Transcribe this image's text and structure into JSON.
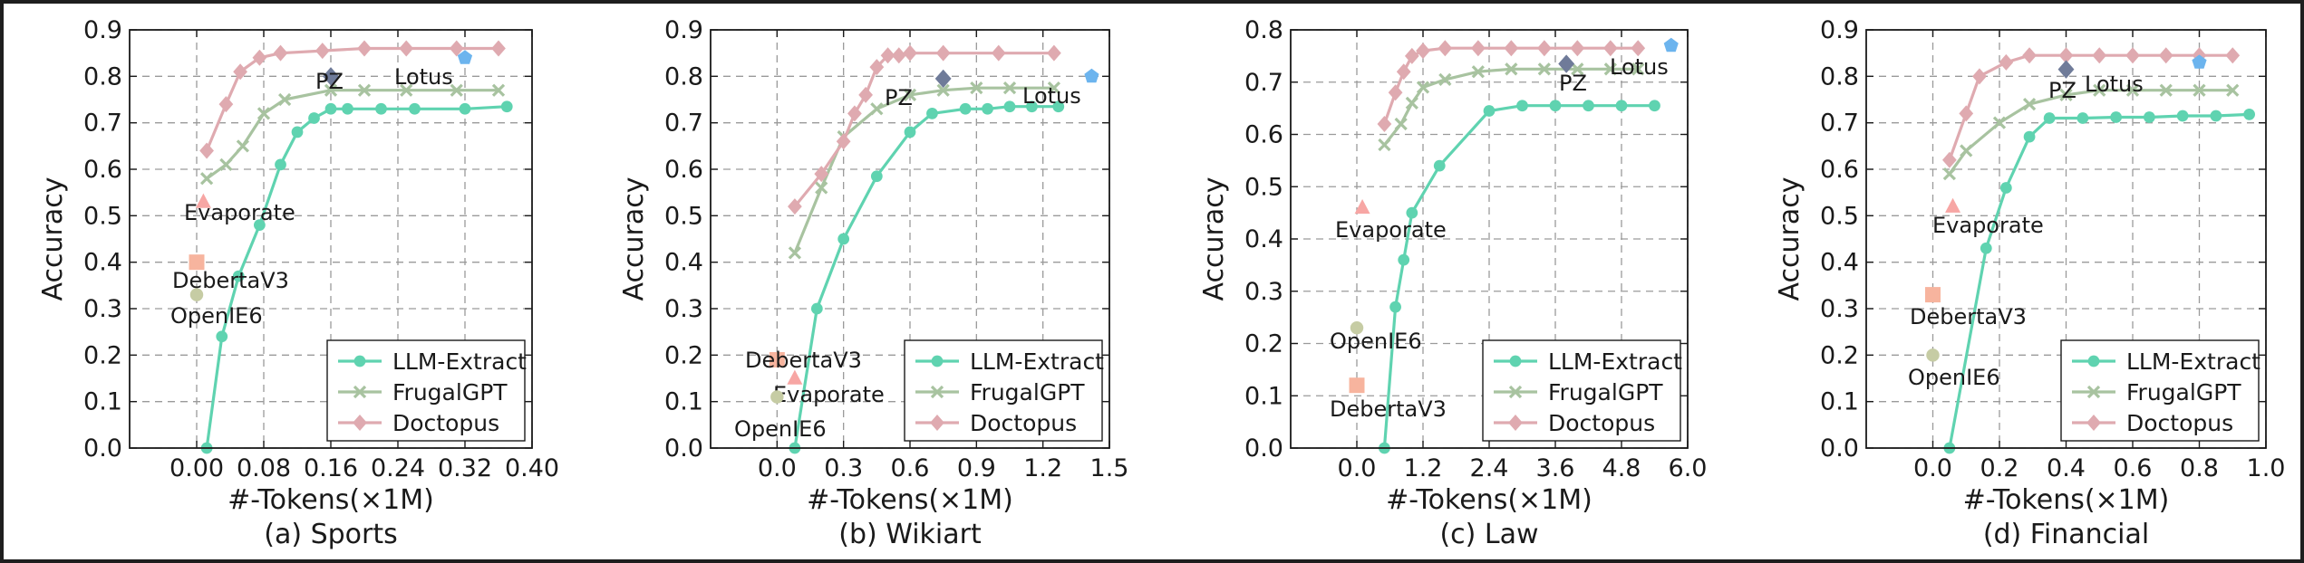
{
  "figure": {
    "colors": {
      "LLM-Extract": "#5fd3b0",
      "FrugalGPT": "#a8c3a0",
      "Doctopus": "#dfaab0",
      "Lotus": "#6cb4ee",
      "PZ": "#6f7b99",
      "Evaporate": "#f7a6a4",
      "DebertaV3": "#f7b49e",
      "OpenIE6": "#c6cca4"
    }
  },
  "chart_data": [
    {
      "type": "line",
      "caption": "(a) Sports",
      "xlabel": "#-Tokens(×1M)",
      "ylabel": "Accuracy",
      "xlim": [
        -0.08,
        0.4
      ],
      "ylim": [
        0.0,
        0.9
      ],
      "xticks": [
        0.0,
        0.08,
        0.16,
        0.24,
        0.32,
        0.4
      ],
      "xtick_labels": [
        "0.00",
        "0.08",
        "0.16",
        "0.24",
        "0.32",
        "0.40"
      ],
      "yticks": [
        0.0,
        0.1,
        0.2,
        0.3,
        0.4,
        0.5,
        0.6,
        0.7,
        0.8,
        0.9
      ],
      "ytick_labels": [
        "0.0",
        "0.1",
        "0.2",
        "0.3",
        "0.4",
        "0.5",
        "0.6",
        "0.7",
        "0.8",
        "0.9"
      ],
      "grid": true,
      "legend_position": "bottom-right",
      "series": [
        {
          "name": "LLM-Extract",
          "marker": "circle",
          "x": [
            0.012,
            0.03,
            0.05,
            0.075,
            0.1,
            0.12,
            0.14,
            0.16,
            0.18,
            0.22,
            0.26,
            0.32,
            0.37
          ],
          "y": [
            0.0,
            0.24,
            0.37,
            0.48,
            0.61,
            0.68,
            0.71,
            0.73,
            0.73,
            0.73,
            0.73,
            0.73,
            0.735
          ]
        },
        {
          "name": "FrugalGPT",
          "marker": "x",
          "x": [
            0.012,
            0.035,
            0.055,
            0.08,
            0.105,
            0.16,
            0.2,
            0.25,
            0.31,
            0.36
          ],
          "y": [
            0.58,
            0.61,
            0.65,
            0.72,
            0.75,
            0.77,
            0.77,
            0.77,
            0.77,
            0.77
          ]
        },
        {
          "name": "Doctopus",
          "marker": "diamond",
          "x": [
            0.012,
            0.035,
            0.052,
            0.075,
            0.1,
            0.15,
            0.2,
            0.25,
            0.31,
            0.36
          ],
          "y": [
            0.64,
            0.74,
            0.81,
            0.84,
            0.85,
            0.855,
            0.86,
            0.86,
            0.86,
            0.86
          ]
        }
      ],
      "points": [
        {
          "name": "PZ",
          "marker": "diamond",
          "x": 0.16,
          "y": 0.8
        },
        {
          "name": "Lotus",
          "marker": "pentagon",
          "x": 0.32,
          "y": 0.84
        },
        {
          "name": "Evaporate",
          "marker": "triangle",
          "x": 0.008,
          "y": 0.53
        },
        {
          "name": "DebertaV3",
          "marker": "square",
          "x": 0.0,
          "y": 0.4
        },
        {
          "name": "OpenIE6",
          "marker": "circle",
          "x": 0.0,
          "y": 0.33
        }
      ]
    },
    {
      "type": "line",
      "caption": "(b) Wikiart",
      "xlabel": "#-Tokens(×1M)",
      "ylabel": "Accuracy",
      "xlim": [
        -0.3,
        1.5
      ],
      "ylim": [
        0.0,
        0.9
      ],
      "xticks": [
        0.0,
        0.3,
        0.6,
        0.9,
        1.2,
        1.5
      ],
      "xtick_labels": [
        "0.0",
        "0.3",
        "0.6",
        "0.9",
        "1.2",
        "1.5"
      ],
      "yticks": [
        0.0,
        0.1,
        0.2,
        0.3,
        0.4,
        0.5,
        0.6,
        0.7,
        0.8,
        0.9
      ],
      "ytick_labels": [
        "0.0",
        "0.1",
        "0.2",
        "0.3",
        "0.4",
        "0.5",
        "0.6",
        "0.7",
        "0.8",
        "0.9"
      ],
      "grid": true,
      "legend_position": "bottom-right",
      "series": [
        {
          "name": "LLM-Extract",
          "marker": "circle",
          "x": [
            0.08,
            0.18,
            0.3,
            0.45,
            0.6,
            0.7,
            0.85,
            0.95,
            1.05,
            1.15,
            1.27
          ],
          "y": [
            0.0,
            0.3,
            0.45,
            0.585,
            0.68,
            0.72,
            0.73,
            0.73,
            0.735,
            0.735,
            0.735
          ]
        },
        {
          "name": "FrugalGPT",
          "marker": "x",
          "x": [
            0.08,
            0.2,
            0.3,
            0.45,
            0.6,
            0.75,
            0.9,
            1.05,
            1.25
          ],
          "y": [
            0.42,
            0.56,
            0.67,
            0.73,
            0.76,
            0.77,
            0.775,
            0.775,
            0.775
          ]
        },
        {
          "name": "Doctopus",
          "marker": "diamond",
          "x": [
            0.08,
            0.2,
            0.3,
            0.35,
            0.4,
            0.45,
            0.5,
            0.55,
            0.6,
            0.75,
            1.0,
            1.25
          ],
          "y": [
            0.52,
            0.59,
            0.66,
            0.72,
            0.76,
            0.82,
            0.845,
            0.845,
            0.85,
            0.85,
            0.85,
            0.85
          ]
        }
      ],
      "points": [
        {
          "name": "PZ",
          "marker": "diamond",
          "x": 0.75,
          "y": 0.795
        },
        {
          "name": "Lotus",
          "marker": "pentagon",
          "x": 1.42,
          "y": 0.8
        },
        {
          "name": "DebertaV3",
          "marker": "square",
          "x": 0.0,
          "y": 0.19
        },
        {
          "name": "Evaporate",
          "marker": "triangle",
          "x": 0.08,
          "y": 0.15
        },
        {
          "name": "OpenIE6",
          "marker": "circle",
          "x": 0.0,
          "y": 0.11
        }
      ]
    },
    {
      "type": "line",
      "caption": "(c) Law",
      "xlabel": "#-Tokens(×1M)",
      "ylabel": "Accuracy",
      "xlim": [
        -1.2,
        6.0
      ],
      "ylim": [
        0.0,
        0.8
      ],
      "xticks": [
        0.0,
        1.2,
        2.4,
        3.6,
        4.8,
        6.0
      ],
      "xtick_labels": [
        "0.0",
        "1.2",
        "2.4",
        "3.6",
        "4.8",
        "6.0"
      ],
      "yticks": [
        0.0,
        0.1,
        0.2,
        0.3,
        0.4,
        0.5,
        0.6,
        0.7,
        0.8
      ],
      "ytick_labels": [
        "0.0",
        "0.1",
        "0.2",
        "0.3",
        "0.4",
        "0.5",
        "0.6",
        "0.7",
        "0.8"
      ],
      "grid": true,
      "legend_position": "bottom-right",
      "series": [
        {
          "name": "LLM-Extract",
          "marker": "circle",
          "x": [
            0.5,
            0.7,
            0.85,
            1.0,
            1.5,
            2.4,
            3.0,
            3.6,
            4.2,
            4.8,
            5.4
          ],
          "y": [
            0.0,
            0.27,
            0.36,
            0.45,
            0.54,
            0.645,
            0.655,
            0.655,
            0.655,
            0.655,
            0.655
          ]
        },
        {
          "name": "FrugalGPT",
          "marker": "x",
          "x": [
            0.5,
            0.8,
            1.0,
            1.2,
            1.6,
            2.2,
            2.8,
            3.4,
            4.0,
            4.6,
            5.1
          ],
          "y": [
            0.58,
            0.62,
            0.66,
            0.69,
            0.705,
            0.72,
            0.725,
            0.725,
            0.725,
            0.725,
            0.725
          ]
        },
        {
          "name": "Doctopus",
          "marker": "diamond",
          "x": [
            0.5,
            0.7,
            0.85,
            1.0,
            1.2,
            1.6,
            2.2,
            2.8,
            3.4,
            4.0,
            4.6,
            5.1
          ],
          "y": [
            0.62,
            0.68,
            0.72,
            0.75,
            0.76,
            0.765,
            0.765,
            0.765,
            0.765,
            0.765,
            0.765,
            0.765
          ]
        }
      ],
      "points": [
        {
          "name": "PZ",
          "marker": "diamond",
          "x": 3.8,
          "y": 0.735
        },
        {
          "name": "Lotus",
          "marker": "pentagon",
          "x": 5.7,
          "y": 0.77
        },
        {
          "name": "Evaporate",
          "marker": "triangle",
          "x": 0.1,
          "y": 0.46
        },
        {
          "name": "OpenIE6",
          "marker": "circle",
          "x": 0.0,
          "y": 0.23
        },
        {
          "name": "DebertaV3",
          "marker": "square",
          "x": 0.0,
          "y": 0.12
        }
      ]
    },
    {
      "type": "line",
      "caption": "(d) Financial",
      "xlabel": "#-Tokens(×1M)",
      "ylabel": "Accuracy",
      "xlim": [
        -0.2,
        1.0
      ],
      "ylim": [
        0.0,
        0.9
      ],
      "xticks": [
        0.0,
        0.2,
        0.4,
        0.6,
        0.8,
        1.0
      ],
      "xtick_labels": [
        "0.0",
        "0.2",
        "0.4",
        "0.6",
        "0.8",
        "1.0"
      ],
      "yticks": [
        0.0,
        0.1,
        0.2,
        0.3,
        0.4,
        0.5,
        0.6,
        0.7,
        0.8,
        0.9
      ],
      "ytick_labels": [
        "0.0",
        "0.1",
        "0.2",
        "0.3",
        "0.4",
        "0.5",
        "0.6",
        "0.7",
        "0.8",
        "0.9"
      ],
      "grid": true,
      "legend_position": "bottom-right",
      "series": [
        {
          "name": "LLM-Extract",
          "marker": "circle",
          "x": [
            0.05,
            0.16,
            0.22,
            0.29,
            0.35,
            0.45,
            0.55,
            0.65,
            0.75,
            0.85,
            0.95
          ],
          "y": [
            0.0,
            0.43,
            0.56,
            0.67,
            0.71,
            0.71,
            0.712,
            0.712,
            0.715,
            0.715,
            0.718
          ]
        },
        {
          "name": "FrugalGPT",
          "marker": "x",
          "x": [
            0.05,
            0.1,
            0.2,
            0.29,
            0.4,
            0.5,
            0.6,
            0.7,
            0.8,
            0.9
          ],
          "y": [
            0.59,
            0.64,
            0.7,
            0.74,
            0.76,
            0.77,
            0.77,
            0.77,
            0.77,
            0.77
          ]
        },
        {
          "name": "Doctopus",
          "marker": "diamond",
          "x": [
            0.05,
            0.1,
            0.14,
            0.22,
            0.29,
            0.4,
            0.5,
            0.6,
            0.7,
            0.8,
            0.9
          ],
          "y": [
            0.62,
            0.72,
            0.8,
            0.83,
            0.845,
            0.845,
            0.845,
            0.845,
            0.845,
            0.845,
            0.845
          ]
        }
      ],
      "points": [
        {
          "name": "PZ",
          "marker": "diamond",
          "x": 0.4,
          "y": 0.815
        },
        {
          "name": "Lotus",
          "marker": "pentagon",
          "x": 0.8,
          "y": 0.83
        },
        {
          "name": "Evaporate",
          "marker": "triangle",
          "x": 0.06,
          "y": 0.52
        },
        {
          "name": "DebertaV3",
          "marker": "square",
          "x": 0.0,
          "y": 0.33
        },
        {
          "name": "OpenIE6",
          "marker": "circle",
          "x": 0.0,
          "y": 0.2
        }
      ]
    }
  ]
}
